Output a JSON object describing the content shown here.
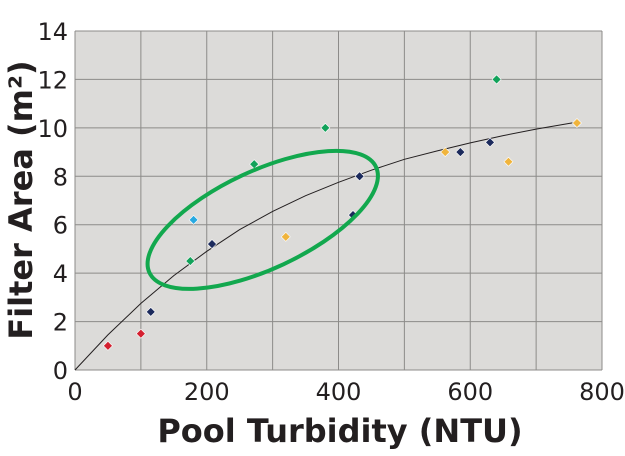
{
  "chart_data": {
    "type": "scatter",
    "title": "",
    "xlabel": "Pool Turbidity (NTU)",
    "ylabel": "Filter Area (m²)",
    "xlim": [
      0,
      800
    ],
    "ylim": [
      0,
      14
    ],
    "x_ticks": [
      "0",
      "200",
      "400",
      "600",
      "800"
    ],
    "y_ticks": [
      "0",
      "2",
      "4",
      "6",
      "8",
      "10",
      "12",
      "14"
    ],
    "grid": true,
    "plot_background": "#dcdbd9",
    "points": [
      {
        "x": 50,
        "y": 1.0,
        "color": "#d42030"
      },
      {
        "x": 100,
        "y": 1.5,
        "color": "#d42030"
      },
      {
        "x": 115,
        "y": 2.4,
        "color": "#1c2a5c"
      },
      {
        "x": 175,
        "y": 4.5,
        "color": "#12a25a"
      },
      {
        "x": 180,
        "y": 6.2,
        "color": "#27a9e1"
      },
      {
        "x": 208,
        "y": 5.2,
        "color": "#1c2a5c"
      },
      {
        "x": 272,
        "y": 8.5,
        "color": "#12a25a"
      },
      {
        "x": 320,
        "y": 5.5,
        "color": "#f0b43c"
      },
      {
        "x": 380,
        "y": 10.0,
        "color": "#12a25a"
      },
      {
        "x": 422,
        "y": 6.4,
        "color": "#1c2a5c"
      },
      {
        "x": 432,
        "y": 8.0,
        "color": "#1c2a5c"
      },
      {
        "x": 562,
        "y": 9.0,
        "color": "#f0b43c"
      },
      {
        "x": 585,
        "y": 9.0,
        "color": "#1c2a5c"
      },
      {
        "x": 630,
        "y": 9.4,
        "color": "#1c2a5c"
      },
      {
        "x": 640,
        "y": 12.0,
        "color": "#12a25a"
      },
      {
        "x": 658,
        "y": 8.6,
        "color": "#f0b43c"
      },
      {
        "x": 762,
        "y": 10.2,
        "color": "#f0b43c"
      }
    ],
    "trend_curve": [
      [
        0,
        0
      ],
      [
        50,
        1.45
      ],
      [
        100,
        2.75
      ],
      [
        150,
        3.9
      ],
      [
        200,
        4.9
      ],
      [
        250,
        5.8
      ],
      [
        300,
        6.55
      ],
      [
        350,
        7.2
      ],
      [
        400,
        7.75
      ],
      [
        450,
        8.25
      ],
      [
        500,
        8.7
      ],
      [
        550,
        9.05
      ],
      [
        600,
        9.38
      ],
      [
        650,
        9.68
      ],
      [
        700,
        9.95
      ],
      [
        765,
        10.25
      ]
    ],
    "highlight_ellipse": {
      "cx": 285,
      "cy": 6.2,
      "rx": 240,
      "ry": 2.0,
      "rotation_deg": -25,
      "color": "#12a84e"
    }
  }
}
